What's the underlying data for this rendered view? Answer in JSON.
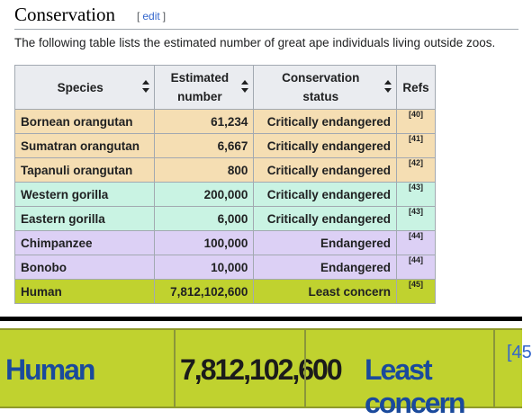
{
  "section": {
    "title": "Conservation",
    "edit_open": "[",
    "edit_label": "edit",
    "edit_close": "]",
    "intro": "The following table lists the estimated number of great ape individuals living outside zoos."
  },
  "table": {
    "headers": {
      "species": "Species",
      "number_line1": "Estimated",
      "number_line2": "number",
      "status_line1": "Conservation",
      "status_line2": "status",
      "refs": "Refs"
    },
    "rows": [
      {
        "species": "Bornean orangutan",
        "number": "61,234",
        "status": "Critically endangered",
        "ref": "[40]",
        "color": "#f5deb3"
      },
      {
        "species": "Sumatran orangutan",
        "number": "6,667",
        "status": "Critically endangered",
        "ref": "[41]",
        "color": "#f5deb3"
      },
      {
        "species": "Tapanuli orangutan",
        "number": "800",
        "status": "Critically endangered",
        "ref": "[42]",
        "color": "#f5deb3"
      },
      {
        "species": "Western gorilla",
        "number": "200,000",
        "status": "Critically endangered",
        "ref": "[43]",
        "color": "#c9f3e3"
      },
      {
        "species": "Eastern gorilla",
        "number": "6,000",
        "status": "Critically endangered",
        "ref": "[43]",
        "color": "#c9f3e3"
      },
      {
        "species": "Chimpanzee",
        "number": "100,000",
        "status": "Endangered",
        "ref": "[44]",
        "color": "#dcd0f5"
      },
      {
        "species": "Bonobo",
        "number": "10,000",
        "status": "Endangered",
        "ref": "[44]",
        "color": "#dcd0f5"
      },
      {
        "species": "Human",
        "number": "7,812,102,600",
        "status": "Least concern",
        "ref": "[45]",
        "color": "#c0d22f"
      }
    ]
  },
  "zoom": {
    "species": "Human",
    "number": "7,812,102,600",
    "status": "Least concern",
    "ref": "[45"
  },
  "colors": {
    "link": "#3366cc",
    "header_bg": "#eaecf0",
    "border": "#a2a9b1"
  }
}
